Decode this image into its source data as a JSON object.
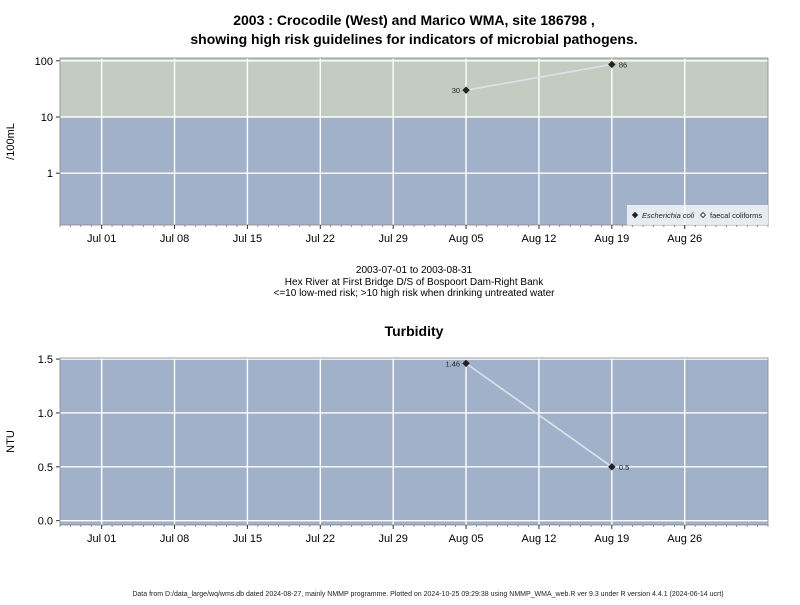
{
  "figure": {
    "title_line1": "2003 : Crocodile (West) and Marico WMA, site 186798 ,",
    "title_line2": "showing high risk guidelines for indicators of microbial pathogens.",
    "subtitle_line1": "2003-07-01 to 2003-08-31",
    "subtitle_line2": "Hex River at First Bridge D/S of Bospoort Dam-Right Bank",
    "subtitle_line3": "<=10 low-med risk; >10 high risk when drinking untreated water",
    "footer": "Data from D:/data_large/wq/wms.db dated 2024-08-27, mainly NMMP programme. Plotted on 2024-10-25 09:29:38 using NMMP_WMA_web.R ver 9.3 under R version 4.4.1 (2024-06-14 ucrt)"
  },
  "colors": {
    "high_risk_zone": "#c2ccc0",
    "low_risk_zone": "#a1b1c9",
    "grid": "#ffffff",
    "series_line": "#dde2ea",
    "marker": "#222222"
  },
  "chart_data": [
    {
      "type": "line",
      "title": "",
      "xlabel": "",
      "ylabel": "/100mL",
      "y_scale": "log",
      "xlim": [
        "2003-06-27",
        "2003-09-03"
      ],
      "ylim": [
        0.12,
        112
      ],
      "y_ticks": [
        1,
        10,
        100
      ],
      "y_tick_labels": [
        "1",
        "10",
        "100"
      ],
      "x_ticks": [
        "2003-07-01",
        "2003-07-08",
        "2003-07-15",
        "2003-07-22",
        "2003-07-29",
        "2003-08-05",
        "2003-08-12",
        "2003-08-19",
        "2003-08-26"
      ],
      "x_tick_labels": [
        "Jul 01",
        "Jul 08",
        "Jul 15",
        "Jul 22",
        "Jul 29",
        "Aug 05",
        "Aug 12",
        "Aug 19",
        "Aug 26"
      ],
      "grid": true,
      "bands": [
        {
          "from": 10,
          "to": 112,
          "color": "#c2ccc0",
          "meaning": "high risk"
        },
        {
          "from": 0.12,
          "to": 10,
          "color": "#a1b1c9",
          "meaning": "low-med risk"
        }
      ],
      "legend_position": "bottom-right",
      "legend": [
        {
          "name": "Escherichia coli",
          "marker": "filled-diamond"
        },
        {
          "name": "faecal coliforms",
          "marker": "open-diamond"
        }
      ],
      "series": [
        {
          "name": "Escherichia coli",
          "x": [
            "2003-08-05",
            "2003-08-19"
          ],
          "values": [
            30,
            86
          ],
          "labels": [
            "30",
            "86"
          ]
        }
      ]
    },
    {
      "type": "line",
      "title": "Turbidity",
      "xlabel": "",
      "ylabel": "NTU",
      "y_scale": "linear",
      "xlim": [
        "2003-06-27",
        "2003-09-03"
      ],
      "ylim": [
        -0.04,
        1.51
      ],
      "y_ticks": [
        0,
        0.5,
        1,
        1.5
      ],
      "y_tick_labels": [
        "0.0",
        "0.5",
        "1.0",
        "1.5"
      ],
      "x_ticks": [
        "2003-07-01",
        "2003-07-08",
        "2003-07-15",
        "2003-07-22",
        "2003-07-29",
        "2003-08-05",
        "2003-08-12",
        "2003-08-19",
        "2003-08-26"
      ],
      "x_tick_labels": [
        "Jul 01",
        "Jul 08",
        "Jul 15",
        "Jul 22",
        "Jul 29",
        "Aug 05",
        "Aug 12",
        "Aug 19",
        "Aug 26"
      ],
      "grid": true,
      "legend_position": "none",
      "series": [
        {
          "name": "",
          "x": [
            "2003-08-05",
            "2003-08-19"
          ],
          "values": [
            1.46,
            0.5
          ],
          "labels": [
            "1.46",
            "0.5"
          ]
        }
      ]
    }
  ]
}
